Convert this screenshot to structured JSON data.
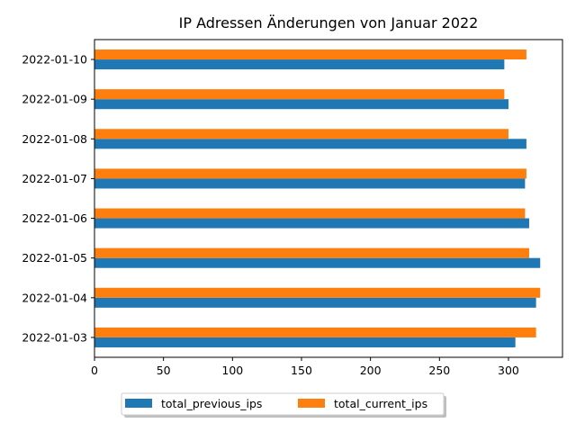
{
  "chart_data": {
    "type": "bar",
    "orientation": "horizontal",
    "title": "IP Adressen Änderungen von Januar 2022",
    "xlabel": "",
    "ylabel": "",
    "categories": [
      "2022-01-03",
      "2022-01-04",
      "2022-01-05",
      "2022-01-06",
      "2022-01-07",
      "2022-01-08",
      "2022-01-09",
      "2022-01-10"
    ],
    "series": [
      {
        "name": "total_previous_ips",
        "color": "#1f77b4",
        "values": [
          305,
          320,
          323,
          315,
          312,
          313,
          300,
          297
        ]
      },
      {
        "name": "total_current_ips",
        "color": "#ff7f0e",
        "values": [
          320,
          323,
          315,
          312,
          313,
          300,
          297,
          313
        ]
      }
    ],
    "xlim": [
      0,
      339.15
    ],
    "xticks": [
      0,
      50,
      100,
      150,
      200,
      250,
      300
    ],
    "grid": false,
    "legend_position": "bottom-center"
  }
}
